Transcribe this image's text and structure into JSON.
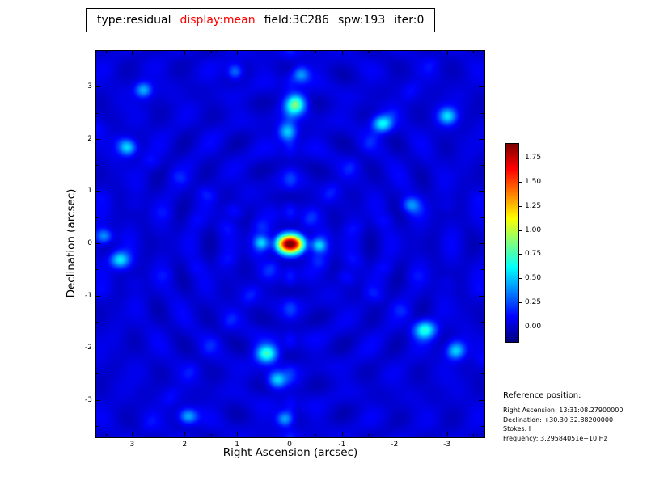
{
  "title_bar": {
    "segments": [
      {
        "text": "type:residual",
        "color": "#000000"
      },
      {
        "text": "display:mean",
        "color": "#ff0000"
      },
      {
        "text": "field:3C286",
        "color": "#000000"
      },
      {
        "text": "spw:193",
        "color": "#000000"
      },
      {
        "text": "iter:0",
        "color": "#000000"
      }
    ]
  },
  "chart_data": {
    "type": "heatmap",
    "title": "type:residual display:mean field:3C286 spw:193 iter:0",
    "xlabel": "Right Ascension (arcsec)",
    "ylabel": "Declination (arcsec)",
    "xlim": [
      3.7,
      -3.7
    ],
    "ylim": [
      -3.7,
      3.7
    ],
    "xticks": [
      "3",
      "2",
      "1",
      "0",
      "-1",
      "-2",
      "-3"
    ],
    "yticks": [
      "3",
      "2",
      "1",
      "0",
      "-1",
      "-2",
      "-3"
    ],
    "colormap": "jet",
    "vmin": -0.15,
    "vmax": 1.9,
    "colorbar_ticks": [
      "1.75",
      "1.50",
      "1.25",
      "1.00",
      "0.75",
      "0.50",
      "0.25",
      "0.00"
    ],
    "peak": {
      "ra_arcsec": 0.0,
      "dec_arcsec": 0.0,
      "value": 1.9
    },
    "background_level": 0.03,
    "components": [
      [
        0.0,
        0.0,
        1.9,
        0.17,
        0.12
      ],
      [
        0.55,
        0.02,
        0.5,
        0.1,
        0.09
      ],
      [
        -0.55,
        -0.02,
        0.5,
        0.1,
        0.09
      ],
      [
        0.05,
        2.15,
        0.55,
        0.12,
        0.12
      ],
      [
        -0.1,
        2.68,
        0.8,
        0.13,
        0.13
      ],
      [
        -0.2,
        3.25,
        0.4,
        0.11,
        0.11
      ],
      [
        0.45,
        -2.1,
        0.7,
        0.14,
        0.12
      ],
      [
        0.25,
        -2.6,
        0.5,
        0.12,
        0.11
      ],
      [
        0.1,
        -3.35,
        0.45,
        0.11,
        0.1
      ],
      [
        -1.75,
        2.3,
        0.6,
        0.13,
        0.11
      ],
      [
        -3.0,
        2.45,
        0.5,
        0.12,
        0.11
      ],
      [
        3.1,
        1.85,
        0.5,
        0.12,
        0.11
      ],
      [
        2.8,
        2.95,
        0.45,
        0.11,
        0.1
      ],
      [
        1.05,
        3.3,
        0.35,
        0.1,
        0.1
      ],
      [
        3.25,
        -0.3,
        0.55,
        0.13,
        0.11
      ],
      [
        3.55,
        0.15,
        0.4,
        0.11,
        0.1
      ],
      [
        -2.55,
        -1.65,
        0.6,
        0.14,
        0.12
      ],
      [
        -3.15,
        -2.05,
        0.5,
        0.12,
        0.11
      ],
      [
        1.95,
        -3.3,
        0.45,
        0.12,
        0.1
      ],
      [
        -2.3,
        0.75,
        0.35,
        0.12,
        0.1
      ]
    ],
    "sidelobe_arms": [
      {
        "angle_deg": 90,
        "amp": 0.14
      },
      {
        "angle_deg": 52,
        "amp": 0.12
      },
      {
        "angle_deg": 149,
        "amp": 0.12
      },
      {
        "angle_deg": 14,
        "amp": 0.07
      },
      {
        "angle_deg": 166,
        "amp": 0.07
      }
    ],
    "ripple_period_arcsec": 0.62
  },
  "reference": {
    "heading": "Reference position:",
    "lines": [
      "Right Ascension: 13:31:08.27900000",
      "Declination: +30.30.32.88200000",
      "Stokes: I",
      "Frequency: 3.29584051e+10 Hz"
    ]
  }
}
